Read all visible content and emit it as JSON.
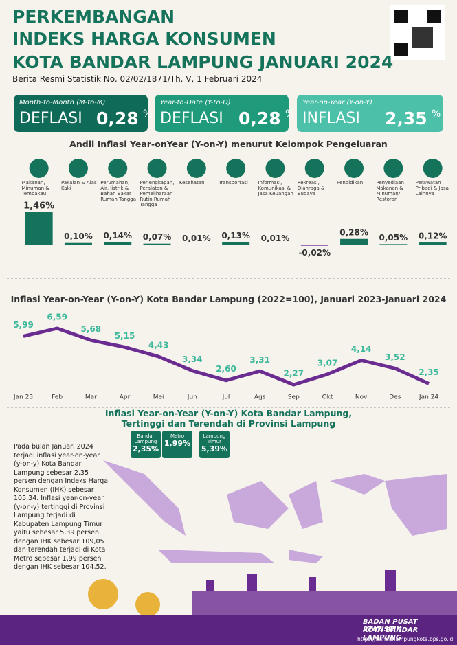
{
  "header": {
    "title": [
      "PERKEMBANGAN",
      "INDEKS HARGA KONSUMEN",
      "KOTA BANDAR LAMPUNG JANUARI 2024"
    ],
    "subtitle": "Berita Resmi Statistik No. 02/02/1871/Th. V, 1 Februari 2024"
  },
  "cards": [
    {
      "label": "Month-to-Month (M-to-M)",
      "status": "DEFLASI",
      "value": "0,28",
      "unit": "%"
    },
    {
      "label": "Year-to-Date (Y-to-D)",
      "status": "DEFLASI",
      "value": "0,28",
      "unit": "%"
    },
    {
      "label": "Year-on-Year (Y-on-Y)",
      "status": "INFLASI",
      "value": "2,35",
      "unit": "%"
    }
  ],
  "chart_data": [
    {
      "type": "bar",
      "title": "Andil Inflasi Year-onYear (Y-on-Y) menurut Kelompok Pengeluaran",
      "color": "#15735c",
      "negative_color": "#6a2c91",
      "categories": [
        "Makanan, Minuman & Tembakau",
        "Pakaian & Alas Kaki",
        "Perumahan, Air, listrik & Bahan Bakar Rumah Tangga",
        "Perlengkapan, Peralatan & Pemeliharaan Rutin Rumah Tangga",
        "Kesehatan",
        "Transportasi",
        "Informasi, Komunikasi & Jasa Keuangan",
        "Rekreasi, Olahraga & Budaya",
        "Pendidikan",
        "Penyediaan Makanan & Minuman/ Restoran",
        "Perawatan Pribadi & Jasa Lainnya"
      ],
      "values": [
        1.46,
        0.1,
        0.14,
        0.07,
        0.01,
        0.13,
        0.01,
        -0.02,
        0.28,
        0.05,
        0.12
      ],
      "value_labels": [
        "1,46%",
        "0,10%",
        "0,14%",
        "0,07%",
        "0,01%",
        "0,13%",
        "0,01%",
        "-0,02%",
        "0,28%",
        "0,05%",
        "0,12%"
      ]
    },
    {
      "type": "line",
      "title": "Inflasi Year-on-Year (Y-on-Y) Kota Bandar Lampung (2022=100), Januari 2023-Januari 2024",
      "color": "#6a2c91",
      "label_color": "#3cb89a",
      "categories": [
        "Jan 23",
        "Feb",
        "Mar",
        "Apr",
        "Mei",
        "Jun",
        "Jul",
        "Ags",
        "Sep",
        "Okt",
        "Nov",
        "Des",
        "Jan 24"
      ],
      "values": [
        5.99,
        6.59,
        5.68,
        5.15,
        4.43,
        3.34,
        2.6,
        3.31,
        2.27,
        3.07,
        4.14,
        3.52,
        2.35
      ],
      "value_labels": [
        "5,99",
        "6,59",
        "5,68",
        "5,15",
        "4,43",
        "3,34",
        "2,60",
        "3,31",
        "2,27",
        "3,07",
        "4,14",
        "3,52",
        "2,35"
      ]
    }
  ],
  "map": {
    "title": [
      "Inflasi Year-on-Year (Y-on-Y) Kota Bandar Lampung,",
      "Tertinggi dan Terendah di Provinsi Lampung"
    ],
    "text": "Pada bulan Januari 2024 terjadi inflasi year-on-year (y-on-y) Kota Bandar Lampung sebesar 2,35 persen dengan Indeks Harga Konsumen (IHK) sebesar 105,34. Inflasi year-on-year (y-on-y) tertinggi di Provinsi Lampung terjadi di Kabupaten Lampung Timur yaitu sebesar 5,39 persen dengan IHK sebesar 109,05 dan terendah terjadi di Kota Metro sebesar 1,99 persen dengan IHK sebesar 104,52.",
    "callouts": [
      {
        "name": "Bandar Lampung",
        "value": "2,35%"
      },
      {
        "name": "Metro",
        "value": "1,99%"
      },
      {
        "name": "Lampung Timur",
        "value": "5,39%"
      }
    ]
  },
  "footer": {
    "org": [
      "BADAN PUSAT STATISTIK",
      "KOTA BANDAR LAMPUNG"
    ],
    "url": "https://bandarlampungkota.bps.go.id"
  }
}
